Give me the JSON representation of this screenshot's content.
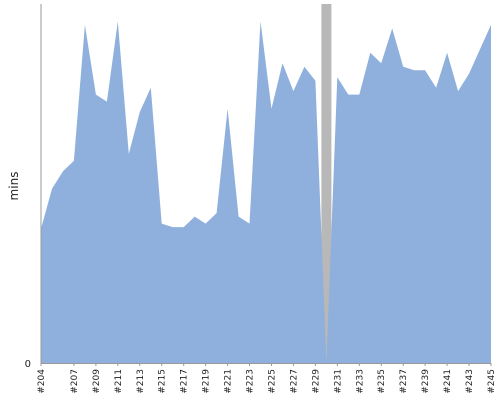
{
  "chart_data": {
    "type": "area",
    "title": "",
    "xlabel": "",
    "ylabel": "mins",
    "y_zero_label": "0",
    "x_tick_labels": [
      "#204",
      "#207",
      "#209",
      "#211",
      "#213",
      "#215",
      "#217",
      "#219",
      "#221",
      "#223",
      "#225",
      "#227",
      "#229",
      "#231",
      "#233",
      "#235",
      "#237",
      "#239",
      "#241",
      "#243",
      "#245"
    ],
    "x": [
      "#204",
      "#205",
      "#206",
      "#207",
      "#208",
      "#209",
      "#210",
      "#211",
      "#212",
      "#213",
      "#214",
      "#215",
      "#216",
      "#217",
      "#218",
      "#219",
      "#220",
      "#221",
      "#222",
      "#223",
      "#224",
      "#225",
      "#226",
      "#227",
      "#228",
      "#229",
      "#230",
      "#231",
      "#232",
      "#233",
      "#234",
      "#235",
      "#236",
      "#237",
      "#238",
      "#239",
      "#240",
      "#241",
      "#242",
      "#243",
      "#244",
      "#245"
    ],
    "values": [
      38.5,
      50,
      55,
      58,
      97,
      77,
      75,
      98,
      60,
      72,
      79,
      40,
      39,
      39,
      42,
      40,
      43,
      73,
      42,
      40,
      98,
      73,
      86,
      78,
      85,
      81,
      0,
      82,
      77,
      77,
      89,
      86,
      96,
      85,
      84,
      84,
      79,
      89,
      78,
      83,
      90,
      97
    ],
    "ylim": [
      0,
      103
    ],
    "series_color": "#8fb0dc",
    "gap_color": "#b8b8b8",
    "axis_color": "#999999",
    "grid": false,
    "legend": "none"
  }
}
